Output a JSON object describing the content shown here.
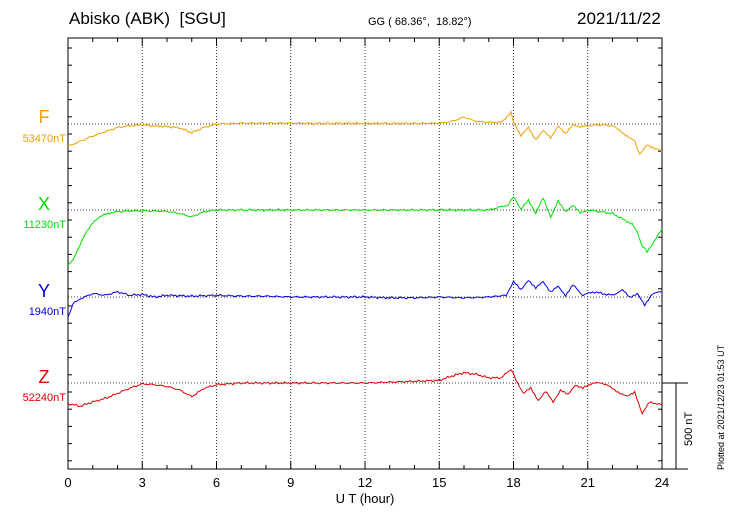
{
  "header": {
    "station": "Abisko (ABK)  [SGU]",
    "coords": "GG ( 68.36°,  18.82°)",
    "date": "2021/11/22"
  },
  "scale_label": "500 nT",
  "plotted_note": "Plotted at 2021/12/23 01:53 UT",
  "chart_data": {
    "type": "line",
    "title": "Abisko (ABK)  [SGU]",
    "xlabel": "U T (hour)",
    "ylabel": "",
    "xlim": [
      0,
      24
    ],
    "xticks": [
      0,
      3,
      6,
      9,
      12,
      15,
      18,
      21,
      24
    ],
    "x_tick_labels": [
      "0",
      "3",
      "6",
      "9",
      "12",
      "15",
      "18",
      "21",
      "24"
    ],
    "y_units": "nT relative to baseline",
    "y_scale_bar_nT": 500,
    "grid": true,
    "series": [
      {
        "name": "F",
        "baseline_label": "53470nT",
        "color": "#f0a000",
        "x": [
          0,
          0.5,
          1,
          1.5,
          2,
          2.5,
          3,
          3.5,
          4,
          4.5,
          5,
          5.5,
          6,
          7,
          8,
          9,
          10,
          11,
          12,
          13,
          14,
          15,
          15.5,
          16,
          16.5,
          17,
          17.5,
          17.9,
          18,
          18.3,
          18.6,
          18.9,
          19.2,
          19.5,
          19.8,
          20.1,
          20.4,
          20.7,
          21,
          21.5,
          22,
          22.3,
          22.6,
          22.9,
          23.1,
          23.4,
          23.7,
          24
        ],
        "values": [
          -130,
          -100,
          -70,
          -45,
          -20,
          -10,
          -5,
          -12,
          -15,
          -22,
          -50,
          -20,
          0,
          5,
          5,
          5,
          3,
          3,
          3,
          3,
          3,
          5,
          15,
          40,
          15,
          10,
          10,
          65,
          15,
          -70,
          -20,
          -90,
          -40,
          -80,
          -10,
          -60,
          0,
          -20,
          -10,
          -5,
          -10,
          -40,
          -70,
          -100,
          -180,
          -120,
          -140,
          -160
        ]
      },
      {
        "name": "X",
        "baseline_label": "11230nT",
        "color": "#00e000",
        "x": [
          0,
          0.2,
          0.4,
          0.7,
          1,
          1.3,
          1.6,
          2,
          2.5,
          3,
          4,
          4.5,
          5,
          5.5,
          6,
          7,
          8,
          9,
          10,
          11,
          12,
          13,
          14,
          15,
          16,
          17,
          17.8,
          18,
          18.3,
          18.6,
          18.9,
          19.2,
          19.5,
          19.8,
          20.1,
          20.4,
          20.7,
          21,
          21.5,
          22,
          22.5,
          22.8,
          23,
          23.2,
          23.4,
          23.7,
          24
        ],
        "values": [
          -320,
          -290,
          -230,
          -140,
          -70,
          -40,
          -20,
          -10,
          -5,
          -5,
          -8,
          -20,
          -40,
          -10,
          0,
          0,
          0,
          0,
          0,
          0,
          0,
          0,
          0,
          0,
          0,
          0,
          30,
          80,
          0,
          60,
          -20,
          70,
          -40,
          50,
          -10,
          30,
          -20,
          0,
          -10,
          -20,
          -60,
          -80,
          -130,
          -210,
          -240,
          -180,
          -110
        ]
      },
      {
        "name": "Y",
        "baseline_label": "1940nT",
        "color": "#0000e0",
        "x": [
          0,
          0.2,
          0.5,
          1,
          1.5,
          2,
          2.5,
          3,
          3.5,
          4,
          5,
          6,
          7,
          8,
          9,
          10,
          11,
          12,
          13,
          14,
          15,
          16,
          17,
          17.7,
          18,
          18.3,
          18.6,
          18.9,
          19.2,
          19.5,
          19.8,
          20.1,
          20.4,
          20.8,
          21.2,
          21.6,
          22,
          22.4,
          22.7,
          23,
          23.3,
          23.6,
          24
        ],
        "values": [
          -120,
          -40,
          -10,
          20,
          10,
          30,
          10,
          15,
          0,
          10,
          5,
          10,
          5,
          5,
          0,
          0,
          0,
          0,
          -5,
          -5,
          0,
          -5,
          0,
          10,
          90,
          40,
          100,
          50,
          90,
          30,
          60,
          10,
          70,
          10,
          30,
          20,
          10,
          40,
          0,
          20,
          -50,
          20,
          30
        ]
      },
      {
        "name": "Z",
        "baseline_label": "52240nT",
        "color": "#e00000",
        "x": [
          0,
          0.5,
          1,
          1.5,
          2,
          2.5,
          3,
          3.5,
          4,
          4.5,
          5,
          5.5,
          6,
          7,
          8,
          9,
          10,
          11,
          12,
          13,
          14,
          15,
          15.5,
          16,
          16.5,
          17,
          17.5,
          17.9,
          18.1,
          18.4,
          18.7,
          19,
          19.3,
          19.6,
          19.9,
          20.2,
          20.5,
          20.8,
          21.2,
          21.6,
          22,
          22.3,
          22.6,
          22.9,
          23.2,
          23.5,
          23.8,
          24
        ],
        "values": [
          -120,
          -135,
          -110,
          -90,
          -60,
          -30,
          -5,
          -10,
          -20,
          -40,
          -80,
          -30,
          -10,
          0,
          0,
          0,
          0,
          0,
          0,
          5,
          10,
          15,
          40,
          60,
          50,
          30,
          30,
          80,
          20,
          -60,
          -30,
          -100,
          -50,
          -110,
          -40,
          -70,
          -10,
          -30,
          0,
          0,
          -30,
          -60,
          -80,
          -50,
          -180,
          -110,
          -120,
          -130
        ]
      }
    ]
  }
}
